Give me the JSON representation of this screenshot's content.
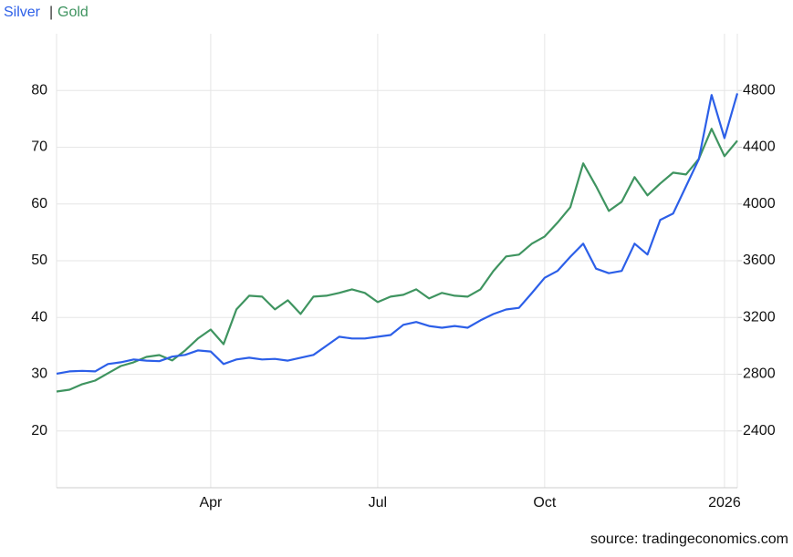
{
  "chart_data": {
    "type": "line",
    "legend_separator": "|",
    "source": "source: tradingeconomics.com",
    "categories": [
      null,
      null,
      null,
      null,
      null,
      null,
      null,
      null,
      null,
      null,
      null,
      null,
      "Apr",
      null,
      null,
      null,
      null,
      null,
      null,
      null,
      null,
      null,
      null,
      null,
      null,
      "Jul",
      null,
      null,
      null,
      null,
      null,
      null,
      null,
      null,
      null,
      null,
      null,
      null,
      "Oct",
      null,
      null,
      null,
      null,
      null,
      null,
      null,
      null,
      null,
      null,
      null,
      null,
      null,
      "2026",
      null
    ],
    "series": [
      {
        "name": "Silver",
        "color": "#2c5fe8",
        "axis": "y",
        "values": [
          30.1,
          30.5,
          30.6,
          30.5,
          31.8,
          32.1,
          32.6,
          32.4,
          32.3,
          33.1,
          33.4,
          34.2,
          34.0,
          31.8,
          32.6,
          32.9,
          32.6,
          32.7,
          32.4,
          32.9,
          33.4,
          35.0,
          36.6,
          36.3,
          36.3,
          36.6,
          36.9,
          38.7,
          39.2,
          38.5,
          38.2,
          38.5,
          38.2,
          39.5,
          40.6,
          41.4,
          41.7,
          44.3,
          47.0,
          48.2,
          50.7,
          53.0,
          48.6,
          47.8,
          48.2,
          53.0,
          51.1,
          57.2,
          58.3,
          63.1,
          67.9,
          79.2,
          71.6,
          79.5
        ]
      },
      {
        "name": "Gold",
        "color": "#3f9460",
        "axis": "y2",
        "values": [
          2678,
          2691,
          2730,
          2755,
          2807,
          2858,
          2884,
          2922,
          2935,
          2897,
          2967,
          3051,
          3115,
          3012,
          3257,
          3353,
          3347,
          3257,
          3321,
          3225,
          3347,
          3353,
          3373,
          3398,
          3373,
          3308,
          3347,
          3360,
          3398,
          3334,
          3373,
          3353,
          3347,
          3398,
          3527,
          3630,
          3643,
          3720,
          3771,
          3868,
          3977,
          4286,
          4125,
          3951,
          4016,
          4189,
          4061,
          4144,
          4221,
          4208,
          4318,
          4530,
          4337,
          4446
        ]
      }
    ],
    "ylim": [
      10,
      90
    ],
    "yticks": [
      20,
      30,
      40,
      50,
      60,
      70,
      80
    ],
    "y2lim": [
      2000,
      5200
    ],
    "y2ticks": [
      2400,
      2800,
      3200,
      3600,
      4000,
      4400,
      4800
    ],
    "grid": true
  }
}
